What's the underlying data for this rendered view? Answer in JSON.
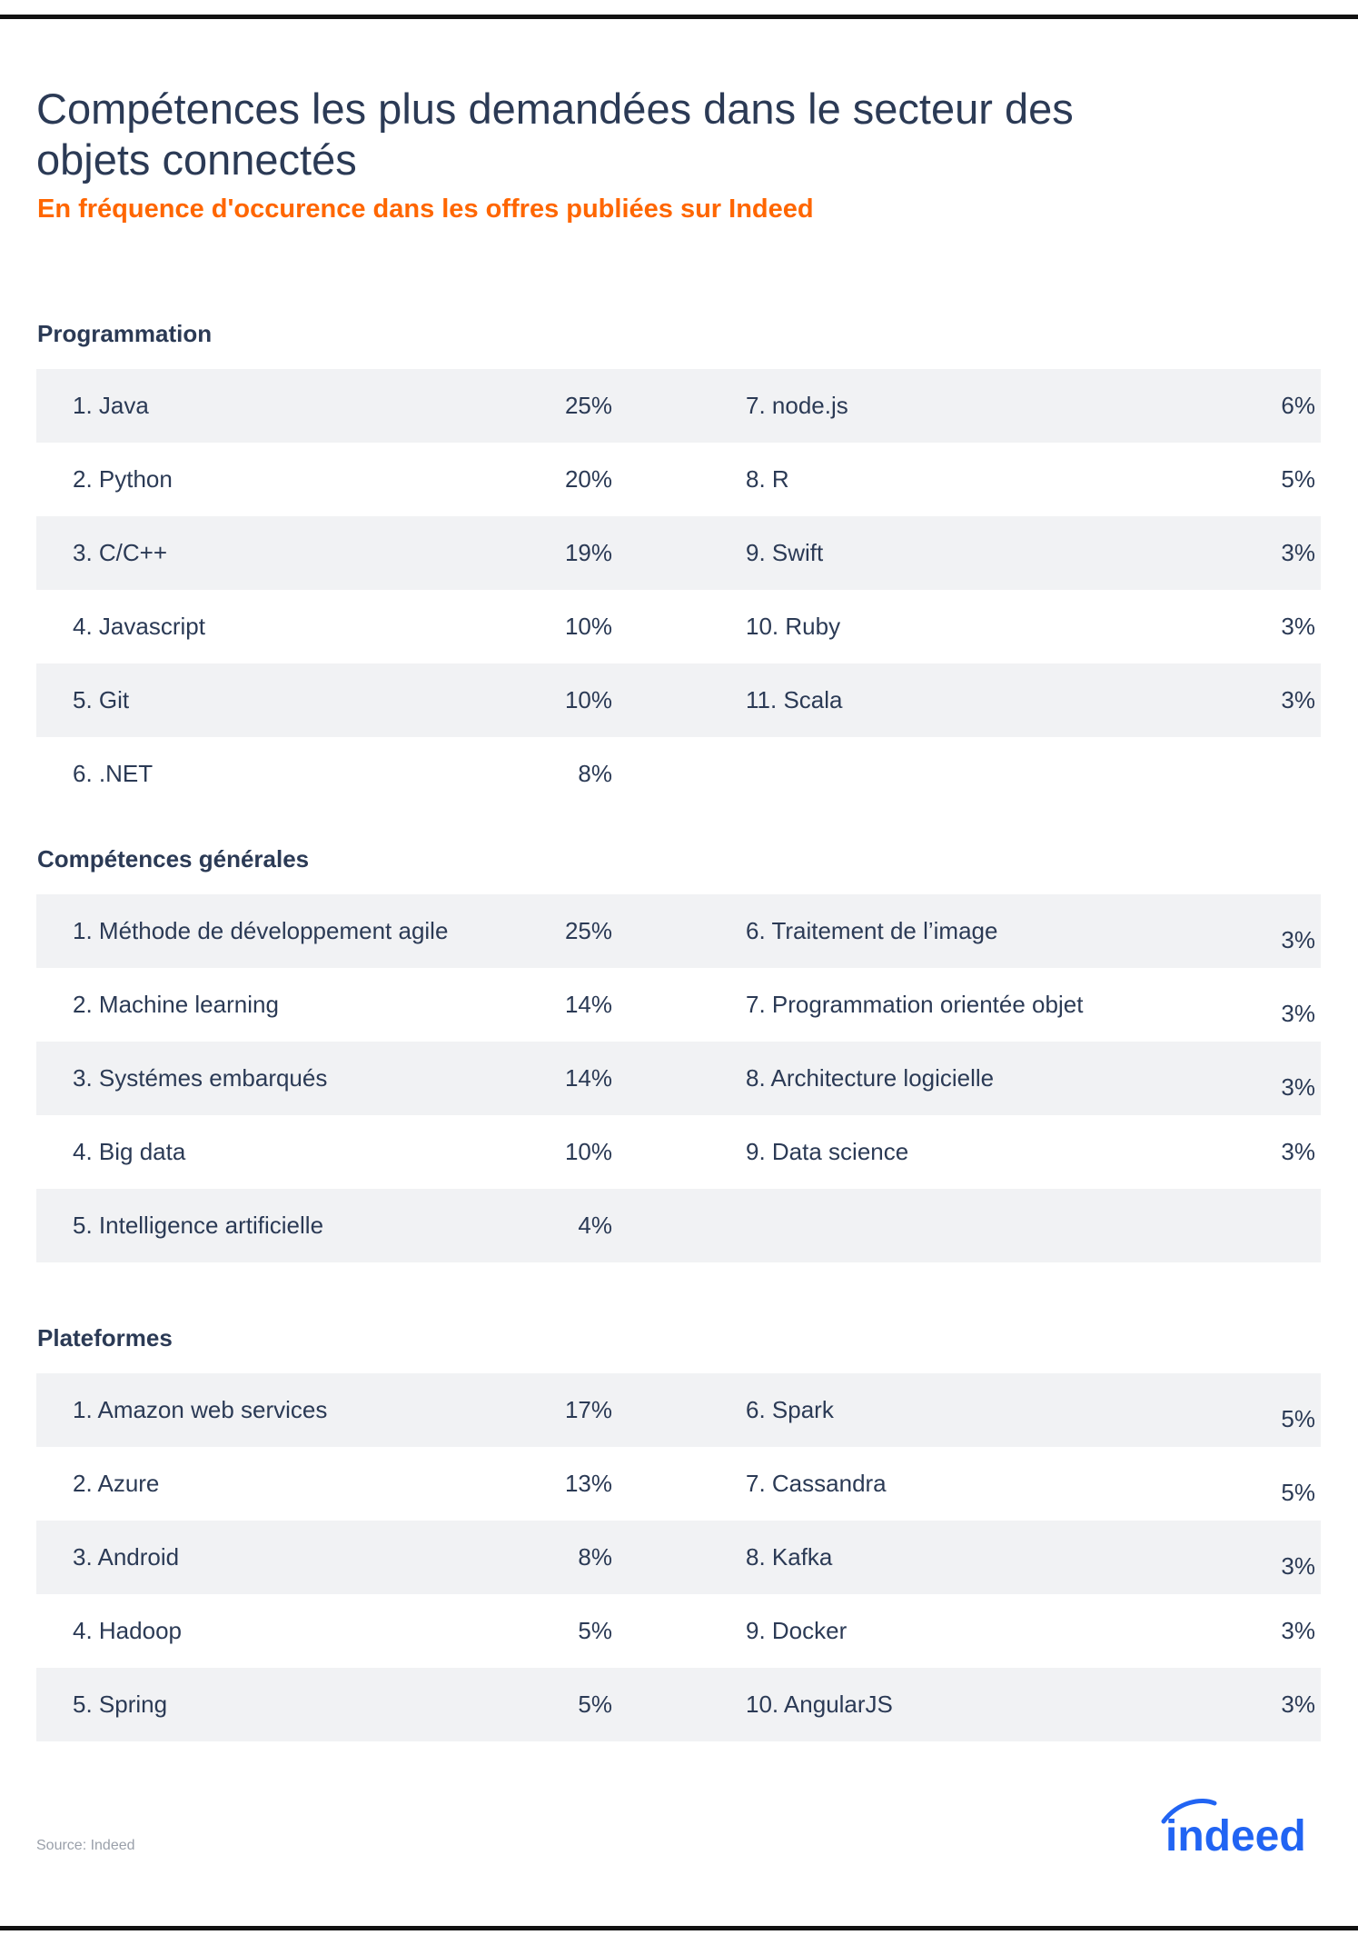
{
  "title": "Compétences les plus demandées dans le secteur des objets connectés",
  "subtitle": "En fréquence d'occurence dans les offres publiées sur Indeed",
  "sections": [
    {
      "heading": "Programmation",
      "left": [
        {
          "label": "1. Java",
          "value": "25%"
        },
        {
          "label": "2. Python",
          "value": "20%"
        },
        {
          "label": "3. C/C++",
          "value": "19%"
        },
        {
          "label": "4. Javascript",
          "value": "10%"
        },
        {
          "label": "5. Git",
          "value": "10%"
        },
        {
          "label": "6. .NET",
          "value": "8%"
        }
      ],
      "right": [
        {
          "label": "7. node.js",
          "value": "6%"
        },
        {
          "label": "8. R",
          "value": "5%"
        },
        {
          "label": "9. Swift",
          "value": "3%"
        },
        {
          "label": "10. Ruby",
          "value": "3%"
        },
        {
          "label": "11. Scala",
          "value": "3%"
        }
      ]
    },
    {
      "heading": "Compétences générales",
      "left": [
        {
          "label": "1. Méthode de développement agile",
          "value": "25%"
        },
        {
          "label": "2. Machine learning",
          "value": "14%"
        },
        {
          "label": "3. Systémes embarqués",
          "value": "14%"
        },
        {
          "label": "4. Big data",
          "value": "10%"
        },
        {
          "label": "5. Intelligence artificielle",
          "value": "4%"
        }
      ],
      "right": [
        {
          "label": "6. Traitement de l’image",
          "value": "3%"
        },
        {
          "label": "7. Programmation orientée objet",
          "value": "3%"
        },
        {
          "label": "8. Architecture logicielle",
          "value": "3%"
        },
        {
          "label": "9. Data science",
          "value": "3%"
        }
      ]
    },
    {
      "heading": "Plateformes",
      "left": [
        {
          "label": "1. Amazon web services",
          "value": "17%"
        },
        {
          "label": "2. Azure",
          "value": "13%"
        },
        {
          "label": "3. Android",
          "value": "8%"
        },
        {
          "label": "4. Hadoop",
          "value": "5%"
        },
        {
          "label": "5. Spring",
          "value": "5%"
        }
      ],
      "right": [
        {
          "label": "6. Spark",
          "value": "5%"
        },
        {
          "label": "7. Cassandra",
          "value": "5%"
        },
        {
          "label": "8. Kafka",
          "value": "3%"
        },
        {
          "label": "9. Docker",
          "value": "3%"
        },
        {
          "label": "10. AngularJS",
          "value": "3%"
        }
      ]
    }
  ],
  "source": "Source: Indeed",
  "logo_text": "indeed",
  "colors": {
    "title": "#2b3a55",
    "subtitle": "#ff6600",
    "row_shade": "#f1f2f4",
    "logo": "#2164f3"
  }
}
